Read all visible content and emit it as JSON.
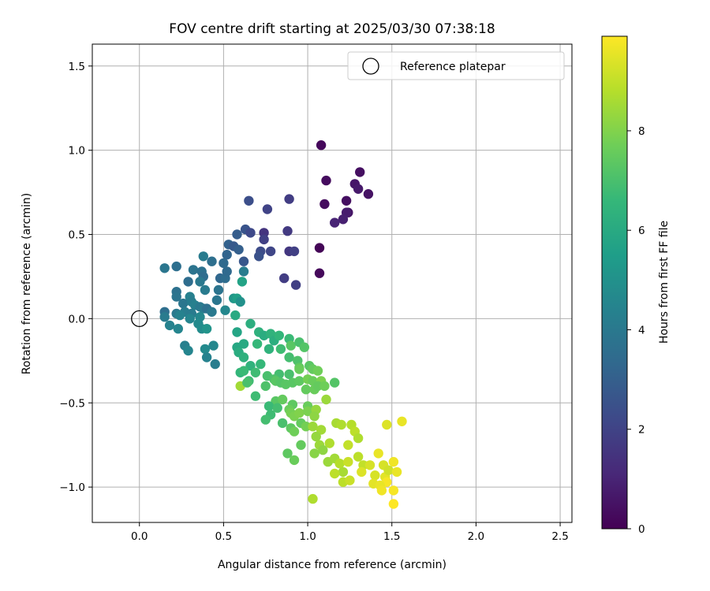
{
  "chart_data": {
    "type": "scatter",
    "title": "FOV centre drift starting at 2025/03/30 07:38:18",
    "xlabel": "Angular distance from reference (arcmin)",
    "ylabel": "Rotation from reference (arcmin)",
    "xlim": [
      -0.28,
      2.57
    ],
    "ylim": [
      -1.21,
      1.63
    ],
    "xticks": [
      0.0,
      0.5,
      1.0,
      1.5,
      2.0,
      2.5
    ],
    "xtick_labels": [
      "0.0",
      "0.5",
      "1.0",
      "1.5",
      "2.0",
      "2.5"
    ],
    "yticks": [
      -1.0,
      -0.5,
      0.0,
      0.5,
      1.0,
      1.5
    ],
    "ytick_labels": [
      "−1.0",
      "−0.5",
      "0.0",
      "0.5",
      "1.0",
      "1.5"
    ],
    "grid": true,
    "legend": {
      "placement": "top-right",
      "entries": [
        "Reference platepar"
      ]
    },
    "reference_point": {
      "x": 0.0,
      "y": 0.0
    },
    "colorbar": {
      "label": "Hours from first FF file",
      "range": [
        0,
        9.9
      ],
      "ticks": [
        0,
        2,
        4,
        6,
        8
      ],
      "tick_labels": [
        "0",
        "2",
        "4",
        "6",
        "8"
      ],
      "colormap": "viridis",
      "colormap_stops": [
        "#440154",
        "#482878",
        "#3e4989",
        "#31688e",
        "#26828e",
        "#1f9e89",
        "#35b779",
        "#6ece58",
        "#b5de2b",
        "#fde725"
      ]
    },
    "points": [
      [
        1.08,
        1.03,
        0.2
      ],
      [
        1.31,
        0.87,
        0.4
      ],
      [
        1.11,
        0.82,
        0.3
      ],
      [
        1.28,
        0.8,
        0.6
      ],
      [
        1.3,
        0.77,
        0.7
      ],
      [
        1.36,
        0.74,
        0.5
      ],
      [
        1.23,
        0.7,
        0.4
      ],
      [
        1.1,
        0.68,
        0.3
      ],
      [
        1.24,
        0.63,
        0.5
      ],
      [
        1.23,
        0.63,
        0.8
      ],
      [
        1.21,
        0.59,
        0.9
      ],
      [
        1.16,
        0.57,
        1.0
      ],
      [
        1.07,
        0.42,
        0.1
      ],
      [
        1.07,
        0.27,
        0.2
      ],
      [
        0.65,
        0.7,
        2.4
      ],
      [
        0.89,
        0.71,
        1.8
      ],
      [
        0.76,
        0.65,
        2.0
      ],
      [
        0.63,
        0.53,
        2.6
      ],
      [
        0.66,
        0.51,
        2.2
      ],
      [
        0.74,
        0.51,
        1.5
      ],
      [
        0.88,
        0.52,
        1.7
      ],
      [
        0.58,
        0.5,
        2.9
      ],
      [
        0.74,
        0.47,
        1.9
      ],
      [
        0.53,
        0.44,
        3.1
      ],
      [
        0.56,
        0.43,
        2.8
      ],
      [
        0.59,
        0.41,
        3.0
      ],
      [
        0.72,
        0.4,
        2.3
      ],
      [
        0.78,
        0.4,
        2.1
      ],
      [
        0.89,
        0.4,
        1.6
      ],
      [
        0.92,
        0.4,
        1.9
      ],
      [
        0.52,
        0.38,
        3.2
      ],
      [
        0.71,
        0.37,
        2.5
      ],
      [
        0.62,
        0.34,
        2.7
      ],
      [
        0.86,
        0.24,
        1.8
      ],
      [
        0.93,
        0.2,
        1.9
      ],
      [
        0.38,
        0.37,
        4.1
      ],
      [
        0.43,
        0.34,
        3.6
      ],
      [
        0.5,
        0.33,
        3.4
      ],
      [
        0.15,
        0.3,
        3.9
      ],
      [
        0.22,
        0.31,
        3.6
      ],
      [
        0.32,
        0.29,
        3.8
      ],
      [
        0.37,
        0.28,
        3.7
      ],
      [
        0.38,
        0.25,
        3.5
      ],
      [
        0.36,
        0.22,
        4.0
      ],
      [
        0.29,
        0.22,
        3.5
      ],
      [
        0.48,
        0.24,
        3.3
      ],
      [
        0.51,
        0.24,
        3.5
      ],
      [
        0.52,
        0.28,
        3.4
      ],
      [
        0.62,
        0.28,
        4.2
      ],
      [
        0.61,
        0.22,
        5.7
      ],
      [
        0.39,
        0.17,
        4.1
      ],
      [
        0.47,
        0.17,
        3.8
      ],
      [
        0.22,
        0.16,
        3.7
      ],
      [
        0.22,
        0.13,
        3.8
      ],
      [
        0.3,
        0.13,
        4.3
      ],
      [
        0.26,
        0.09,
        3.9
      ],
      [
        0.31,
        0.1,
        4.2
      ],
      [
        0.46,
        0.11,
        3.9
      ],
      [
        0.33,
        0.08,
        4.3
      ],
      [
        0.36,
        0.07,
        4.0
      ],
      [
        0.38,
        0.06,
        4.1
      ],
      [
        0.4,
        0.06,
        3.7
      ],
      [
        0.56,
        0.12,
        5.2
      ],
      [
        0.58,
        0.12,
        5.6
      ],
      [
        0.6,
        0.1,
        5.0
      ],
      [
        0.15,
        0.04,
        3.6
      ],
      [
        0.22,
        0.03,
        4.0
      ],
      [
        0.27,
        0.04,
        4.2
      ],
      [
        0.31,
        0.03,
        4.1
      ],
      [
        0.43,
        0.04,
        4.0
      ],
      [
        0.51,
        0.05,
        4.6
      ],
      [
        0.15,
        0.01,
        4.1
      ],
      [
        0.24,
        0.02,
        4.4
      ],
      [
        0.3,
        0.0,
        4.5
      ],
      [
        0.36,
        0.01,
        4.6
      ],
      [
        0.35,
        -0.03,
        4.7
      ],
      [
        0.18,
        -0.04,
        4.4
      ],
      [
        0.23,
        -0.06,
        4.5
      ],
      [
        0.37,
        -0.06,
        4.8
      ],
      [
        0.4,
        -0.06,
        5.1
      ],
      [
        0.57,
        0.02,
        6.0
      ],
      [
        0.66,
        -0.03,
        6.2
      ],
      [
        0.27,
        -0.16,
        4.3
      ],
      [
        0.29,
        -0.19,
        4.5
      ],
      [
        0.39,
        -0.18,
        4.7
      ],
      [
        0.44,
        -0.16,
        4.6
      ],
      [
        0.4,
        -0.23,
        4.4
      ],
      [
        0.45,
        -0.27,
        4.2
      ],
      [
        0.58,
        -0.08,
        5.8
      ],
      [
        0.58,
        -0.17,
        5.9
      ],
      [
        0.62,
        -0.15,
        6.0
      ],
      [
        0.71,
        -0.08,
        6.3
      ],
      [
        0.74,
        -0.1,
        6.1
      ],
      [
        0.78,
        -0.09,
        6.4
      ],
      [
        0.8,
        -0.13,
        6.2
      ],
      [
        0.83,
        -0.1,
        6.5
      ],
      [
        0.89,
        -0.12,
        6.7
      ],
      [
        0.59,
        -0.2,
        6.1
      ],
      [
        0.62,
        -0.23,
        6.3
      ],
      [
        0.7,
        -0.15,
        6.6
      ],
      [
        0.77,
        -0.18,
        6.4
      ],
      [
        0.84,
        -0.18,
        6.8
      ],
      [
        0.9,
        -0.16,
        7.3
      ],
      [
        0.95,
        -0.14,
        7.0
      ],
      [
        0.98,
        -0.17,
        7.2
      ],
      [
        0.89,
        -0.23,
        6.9
      ],
      [
        0.94,
        -0.25,
        7.1
      ],
      [
        0.66,
        -0.28,
        6.4
      ],
      [
        0.72,
        -0.27,
        6.6
      ],
      [
        0.6,
        -0.32,
        6.5
      ],
      [
        0.62,
        -0.31,
        6.7
      ],
      [
        0.69,
        -0.32,
        6.8
      ],
      [
        0.76,
        -0.34,
        7.0
      ],
      [
        0.83,
        -0.33,
        6.9
      ],
      [
        0.89,
        -0.33,
        7.0
      ],
      [
        0.95,
        -0.29,
        7.4
      ],
      [
        0.95,
        -0.3,
        7.6
      ],
      [
        1.01,
        -0.28,
        7.3
      ],
      [
        1.03,
        -0.3,
        7.5
      ],
      [
        1.06,
        -0.31,
        7.7
      ],
      [
        0.65,
        -0.37,
        6.8
      ],
      [
        0.8,
        -0.36,
        7.1
      ],
      [
        0.81,
        -0.37,
        7.3
      ],
      [
        0.84,
        -0.38,
        7.2
      ],
      [
        0.91,
        -0.38,
        7.3
      ],
      [
        0.95,
        -0.37,
        7.4
      ],
      [
        1.0,
        -0.36,
        7.8
      ],
      [
        1.03,
        -0.37,
        7.6
      ],
      [
        1.08,
        -0.37,
        7.9
      ],
      [
        0.6,
        -0.4,
        8.5
      ],
      [
        0.64,
        -0.38,
        7.0
      ],
      [
        0.75,
        -0.4,
        7.1
      ],
      [
        0.87,
        -0.39,
        7.3
      ],
      [
        0.99,
        -0.42,
        7.5
      ],
      [
        1.04,
        -0.42,
        7.6
      ],
      [
        1.06,
        -0.4,
        7.5
      ],
      [
        1.1,
        -0.4,
        7.7
      ],
      [
        1.16,
        -0.38,
        7.2
      ],
      [
        0.69,
        -0.46,
        6.8
      ],
      [
        0.81,
        -0.49,
        7.3
      ],
      [
        0.85,
        -0.48,
        7.5
      ],
      [
        0.91,
        -0.51,
        7.4
      ],
      [
        1.0,
        -0.52,
        7.6
      ],
      [
        1.11,
        -0.48,
        8.4
      ],
      [
        0.77,
        -0.52,
        6.7
      ],
      [
        0.82,
        -0.53,
        6.9
      ],
      [
        0.78,
        -0.57,
        6.8
      ],
      [
        0.89,
        -0.54,
        7.6
      ],
      [
        0.9,
        -0.56,
        7.8
      ],
      [
        0.92,
        -0.58,
        7.9
      ],
      [
        0.95,
        -0.56,
        8.0
      ],
      [
        1.0,
        -0.55,
        7.9
      ],
      [
        1.05,
        -0.54,
        8.3
      ],
      [
        1.04,
        -0.58,
        8.2
      ],
      [
        0.75,
        -0.6,
        6.9
      ],
      [
        0.85,
        -0.62,
        7.0
      ],
      [
        0.9,
        -0.65,
        7.4
      ],
      [
        0.92,
        -0.67,
        7.7
      ],
      [
        0.96,
        -0.62,
        7.5
      ],
      [
        0.99,
        -0.64,
        7.8
      ],
      [
        1.03,
        -0.64,
        8.4
      ],
      [
        1.08,
        -0.66,
        8.5
      ],
      [
        1.17,
        -0.62,
        8.6
      ],
      [
        1.2,
        -0.63,
        8.7
      ],
      [
        1.26,
        -0.63,
        8.8
      ],
      [
        1.28,
        -0.67,
        8.9
      ],
      [
        1.3,
        -0.71,
        8.7
      ],
      [
        1.05,
        -0.7,
        8.3
      ],
      [
        0.96,
        -0.75,
        7.5
      ],
      [
        1.07,
        -0.75,
        8.4
      ],
      [
        1.09,
        -0.78,
        8.2
      ],
      [
        1.13,
        -0.74,
        8.7
      ],
      [
        1.24,
        -0.75,
        9.0
      ],
      [
        1.42,
        -0.8,
        9.6
      ],
      [
        1.47,
        -0.63,
        9.4
      ],
      [
        1.56,
        -0.61,
        9.6
      ],
      [
        0.88,
        -0.8,
        7.4
      ],
      [
        0.92,
        -0.84,
        7.6
      ],
      [
        1.04,
        -0.8,
        8.1
      ],
      [
        1.12,
        -0.85,
        8.4
      ],
      [
        1.16,
        -0.83,
        8.5
      ],
      [
        1.19,
        -0.86,
        8.8
      ],
      [
        1.24,
        -0.85,
        9.1
      ],
      [
        1.3,
        -0.82,
        8.9
      ],
      [
        1.33,
        -0.87,
        9.0
      ],
      [
        1.37,
        -0.87,
        9.3
      ],
      [
        1.45,
        -0.87,
        9.3
      ],
      [
        1.51,
        -0.85,
        9.7
      ],
      [
        1.21,
        -0.91,
        8.6
      ],
      [
        1.16,
        -0.92,
        8.9
      ],
      [
        1.21,
        -0.97,
        8.9
      ],
      [
        1.25,
        -0.96,
        9.1
      ],
      [
        1.32,
        -0.91,
        9.4
      ],
      [
        1.4,
        -0.93,
        9.3
      ],
      [
        1.46,
        -0.94,
        9.5
      ],
      [
        1.48,
        -0.9,
        9.2
      ],
      [
        1.53,
        -0.91,
        9.6
      ],
      [
        1.47,
        -0.97,
        9.8
      ],
      [
        1.39,
        -0.98,
        9.5
      ],
      [
        1.43,
        -0.99,
        9.6
      ],
      [
        1.44,
        -1.02,
        9.7
      ],
      [
        1.51,
        -1.02,
        9.8
      ],
      [
        1.51,
        -1.1,
        9.9
      ],
      [
        1.03,
        -1.07,
        8.7
      ]
    ]
  }
}
